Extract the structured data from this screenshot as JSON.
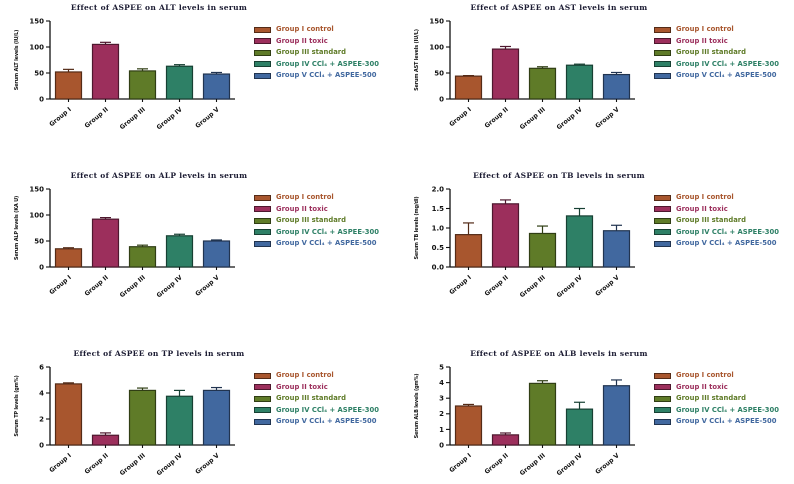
{
  "page": {
    "background": "#ffffff"
  },
  "legend": {
    "items": [
      {
        "label": "Group I control",
        "color": "#A8562E"
      },
      {
        "label": "Group II toxic",
        "color": "#9C2F5C"
      },
      {
        "label": "Group III standard",
        "color": "#5F7B28"
      },
      {
        "label": "Group IV CCl₄ + ASPEE-300",
        "color": "#2E8066"
      },
      {
        "label": "Group V CCl₄ + ASPEE-500",
        "color": "#41689F"
      }
    ],
    "position": "right"
  },
  "chart_data": [
    {
      "type": "bar",
      "title": "Effect of ASPEE on ALT levels in serum",
      "ylabel": "Serum ALT levels (IU/L)",
      "xlabel": "",
      "categories": [
        "Group I",
        "Group II",
        "Group III",
        "Group IV",
        "Group V"
      ],
      "values": [
        52,
        105,
        54,
        63,
        48
      ],
      "errors": [
        5,
        4,
        4,
        3,
        3
      ],
      "yticks": [
        0,
        50,
        100,
        150
      ],
      "ylim": [
        0,
        150
      ],
      "ytick_decimals": 0,
      "grid": false,
      "legend_position": "right"
    },
    {
      "type": "bar",
      "title": "Effect of ASPEE on AST levels in serum",
      "ylabel": "Serum AST levels (IU/L)",
      "xlabel": "",
      "categories": [
        "Group I",
        "Group II",
        "Group III",
        "Group IV",
        "Group V"
      ],
      "values": [
        44,
        96,
        59,
        65,
        47
      ],
      "errors": [
        1,
        5,
        3,
        2,
        4
      ],
      "yticks": [
        0,
        50,
        100,
        150
      ],
      "ylim": [
        0,
        150
      ],
      "ytick_decimals": 0,
      "grid": false,
      "legend_position": "right"
    },
    {
      "type": "bar",
      "title": "Effect of ASPEE on ALP levels in serum",
      "ylabel": "Serum ALP levels (KA U)",
      "xlabel": "",
      "categories": [
        "Group I",
        "Group II",
        "Group III",
        "Group IV",
        "Group V"
      ],
      "values": [
        35,
        92,
        39,
        60,
        50
      ],
      "errors": [
        2,
        3,
        3,
        3,
        2
      ],
      "yticks": [
        0,
        50,
        100,
        150
      ],
      "ylim": [
        0,
        150
      ],
      "ytick_decimals": 0,
      "grid": false,
      "legend_position": "right"
    },
    {
      "type": "bar",
      "title": "Effect of ASPEE on TB levels in serum",
      "ylabel": "Serum TB levels (mg/dl)",
      "xlabel": "",
      "categories": [
        "Group I",
        "Group II",
        "Group III",
        "Group IV",
        "Group V"
      ],
      "values": [
        0.83,
        1.62,
        0.86,
        1.31,
        0.93
      ],
      "errors": [
        0.3,
        0.1,
        0.19,
        0.19,
        0.14
      ],
      "yticks": [
        0,
        0.5,
        1.0,
        1.5,
        2.0
      ],
      "ylim": [
        0,
        2.0
      ],
      "ytick_decimals": 1,
      "grid": false,
      "legend_position": "right"
    },
    {
      "type": "bar",
      "title": "Effect of ASPEE on TP levels in serum",
      "ylabel": "Serum TP levels (gm%)",
      "xlabel": "",
      "categories": [
        "Group I",
        "Group II",
        "Group III",
        "Group IV",
        "Group V"
      ],
      "values": [
        4.7,
        0.75,
        4.2,
        3.75,
        4.2
      ],
      "errors": [
        0.08,
        0.18,
        0.18,
        0.45,
        0.22
      ],
      "yticks": [
        0,
        2,
        4,
        6
      ],
      "ylim": [
        0,
        6
      ],
      "ytick_decimals": 0,
      "grid": false,
      "legend_position": "right"
    },
    {
      "type": "bar",
      "title": "Effect of ASPEE on ALB levels in serum",
      "ylabel": "Serum ALB levels (gm%)",
      "xlabel": "",
      "categories": [
        "Group I",
        "Group II",
        "Group III",
        "Group IV",
        "Group V"
      ],
      "values": [
        2.5,
        0.65,
        3.95,
        2.3,
        3.8
      ],
      "errors": [
        0.1,
        0.12,
        0.17,
        0.44,
        0.37
      ],
      "yticks": [
        0,
        1,
        2,
        3,
        4,
        5
      ],
      "ylim": [
        0,
        5
      ],
      "ytick_decimals": 0,
      "grid": false,
      "legend_position": "right"
    }
  ],
  "style": {
    "title_color": "#1b1b32",
    "axis_color": "#111111",
    "background": "#ffffff"
  }
}
